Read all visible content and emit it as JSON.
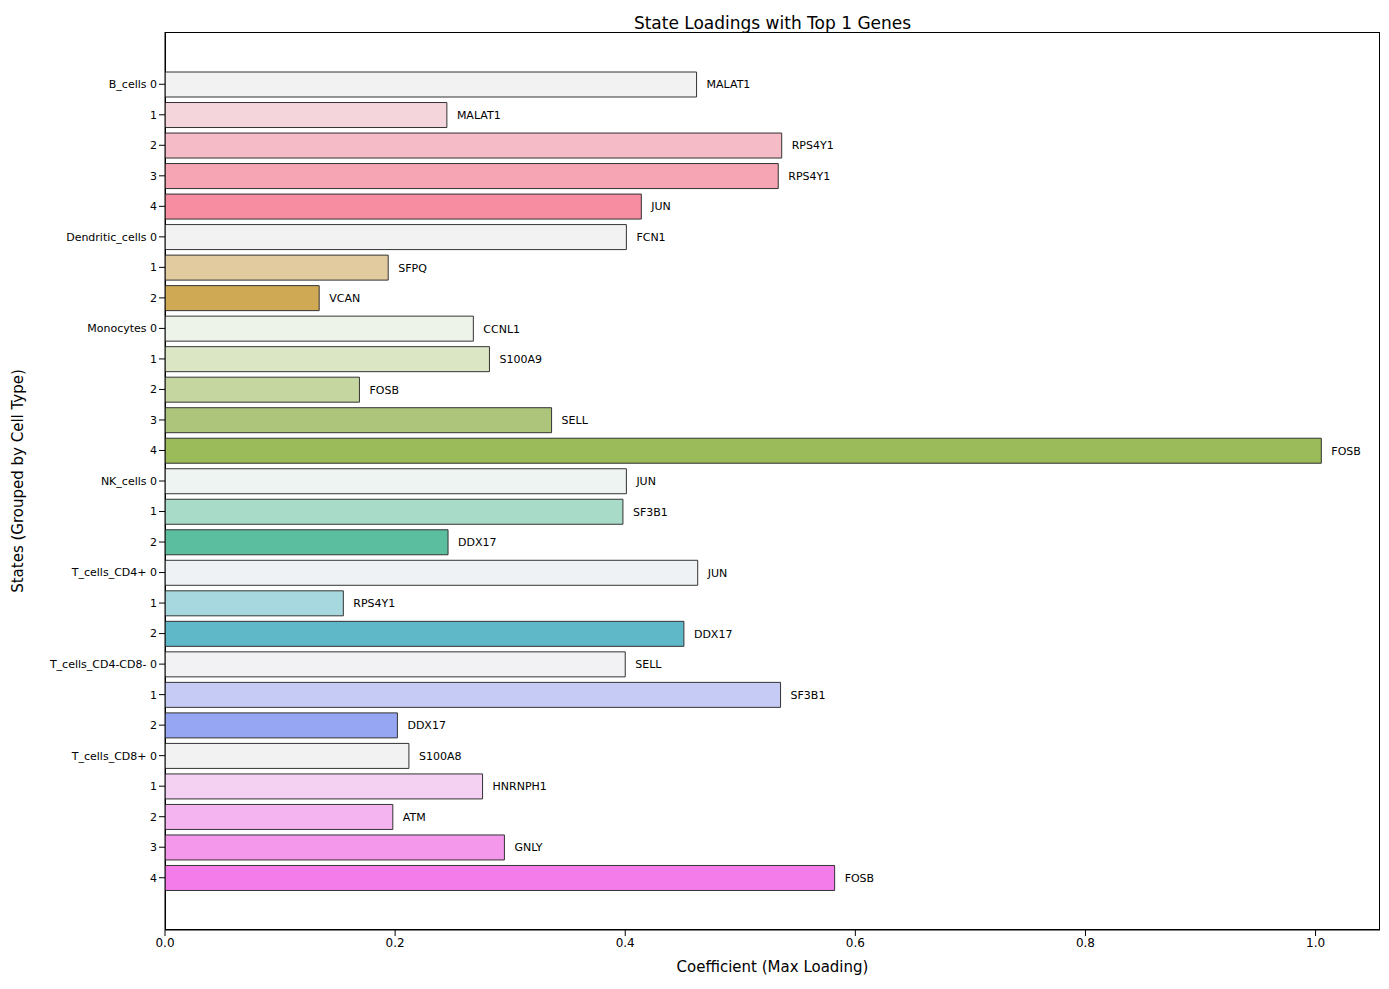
{
  "chart_data": {
    "type": "bar",
    "orientation": "horizontal",
    "title": "State Loadings with Top 1 Genes",
    "x_label": "Coefficient (Max Loading)",
    "y_label": "States (Grouped by Cell Type)",
    "categories": [
      "B_cells 0",
      "1",
      "2",
      "3",
      "4",
      "Dendritic_cells 0",
      "1",
      "2",
      "Monocytes 0",
      "1",
      "2",
      "3",
      "4",
      "NK_cells 0",
      "1",
      "2",
      "T_cells_CD4+ 0",
      "1",
      "2",
      "T_cells_CD4-CD8- 0",
      "1",
      "2",
      "T_cells_CD8+ 0",
      "1",
      "2",
      "3",
      "4"
    ],
    "values": [
      0.462,
      0.245,
      0.536,
      0.533,
      0.414,
      0.401,
      0.194,
      0.134,
      0.268,
      0.282,
      0.169,
      0.336,
      1.005,
      0.401,
      0.398,
      0.246,
      0.463,
      0.155,
      0.451,
      0.4,
      0.535,
      0.202,
      0.212,
      0.276,
      0.198,
      0.295,
      0.582
    ],
    "annotations": [
      "MALAT1",
      "MALAT1",
      "RPS4Y1",
      "RPS4Y1",
      "JUN",
      "FCN1",
      "SFPQ",
      "VCAN",
      "CCNL1",
      "S100A9",
      "FOSB",
      "SELL",
      "FOSB",
      "JUN",
      "SF3B1",
      "DDX17",
      "JUN",
      "RPS4Y1",
      "DDX17",
      "SELL",
      "SF3B1",
      "DDX17",
      "S100A8",
      "HNRNPH1",
      "ATM",
      "GNLY",
      "FOSB"
    ],
    "colors": [
      "#f2f2f2",
      "#f5d5dc",
      "#f5bcc8",
      "#f5a5b3",
      "#f78da0",
      "#f2f2f2",
      "#e3cba0",
      "#d0a955",
      "#eef3ea",
      "#dbe6c5",
      "#c6d6a1",
      "#adc57a",
      "#9bba59",
      "#eef4f1",
      "#a8dbc8",
      "#5bbe9e",
      "#eef2f4",
      "#a8d8df",
      "#5eb8c8",
      "#f2f2f4",
      "#c5cbf4",
      "#97a6f3",
      "#f2f2f2",
      "#f4d0f2",
      "#f3b4ef",
      "#f498ec",
      "#f47bea"
    ],
    "xlim": [
      0,
      1.056
    ],
    "xticks": [
      {
        "value": 0,
        "label": "0.0"
      },
      {
        "value": 0.2,
        "label": "0.2"
      },
      {
        "value": 0.4,
        "label": "0.4"
      },
      {
        "value": 0.6,
        "label": "0.6"
      },
      {
        "value": 0.8,
        "label": "0.8"
      },
      {
        "value": 1,
        "label": "1.0"
      }
    ],
    "grid": false
  }
}
